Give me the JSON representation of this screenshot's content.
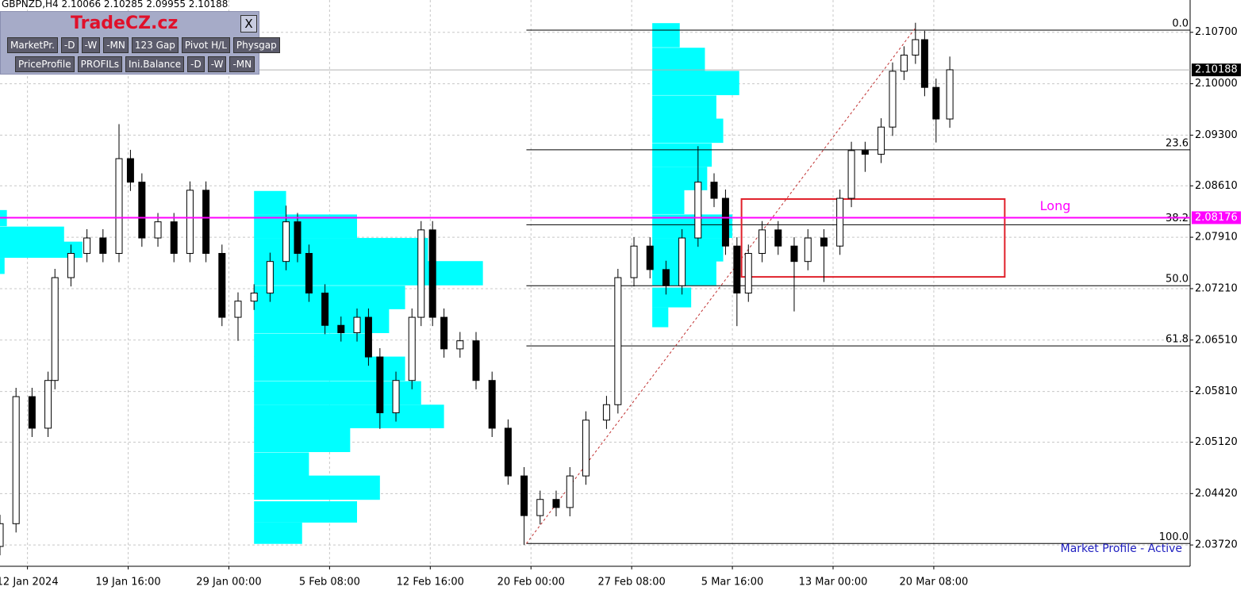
{
  "title": "GBPNZD,H4  2.10066 2.10285 2.09955 2.10188",
  "toolbar": {
    "brand": "TradeCZ.cz",
    "close": "X",
    "row1": [
      "MarketPr.",
      "-D",
      "-W",
      "-MN",
      "123 Gap",
      "Pivot H/L",
      "Physgap"
    ],
    "row2": [
      "PriceProfile",
      "PROFILs",
      "Ini.Balance",
      "-D",
      "-W",
      "-MN"
    ]
  },
  "status": "Market Profile - Active",
  "chart_data": {
    "type": "candlestick",
    "color": "#000000",
    "grid": true,
    "x": [
      0,
      7,
      14,
      21,
      24,
      31,
      38,
      45,
      52,
      57,
      62,
      69,
      76,
      83,
      90,
      97,
      104,
      111,
      118,
      125,
      130,
      135,
      142,
      149,
      156,
      161,
      166,
      173,
      180,
      184,
      189,
      194,
      201,
      208,
      215,
      222,
      229,
      236,
      243,
      249,
      256,
      265,
      270,
      277,
      284,
      291,
      298,
      305,
      312,
      317,
      322,
      327,
      333,
      340,
      347,
      353,
      360,
      367,
      372,
      378,
      385,
      390,
      395,
      400,
      404,
      409,
      415
    ],
    "open": [
      2.037,
      2.0401,
      2.0574,
      2.0531,
      2.0596,
      2.0736,
      2.0769,
      2.079,
      2.0769,
      2.0898,
      2.0866,
      2.079,
      2.0812,
      2.0769,
      2.0855,
      2.0769,
      2.0682,
      2.0704,
      2.0715,
      2.0758,
      2.0812,
      2.0769,
      2.0715,
      2.0671,
      2.0661,
      2.0682,
      2.0628,
      2.0552,
      2.0596,
      2.0682,
      2.0801,
      2.0682,
      2.0639,
      2.065,
      2.0596,
      2.0531,
      2.0466,
      2.0412,
      2.0434,
      2.0423,
      2.0466,
      2.0542,
      2.0563,
      2.0736,
      2.0779,
      2.0747,
      2.0725,
      2.079,
      2.0866,
      2.0844,
      2.0779,
      2.0715,
      2.0769,
      2.0801,
      2.0779,
      2.0758,
      2.079,
      2.0779,
      2.0844,
      2.0909,
      2.0904,
      2.0941,
      2.1017,
      2.1039,
      2.106,
      2.0995,
      2.0952
    ],
    "high": [
      2.0413,
      2.0586,
      2.0586,
      2.0608,
      2.0748,
      2.0781,
      2.0802,
      2.0802,
      2.0945,
      2.091,
      2.0878,
      2.0824,
      2.0824,
      2.0867,
      2.0867,
      2.0781,
      2.0716,
      2.0727,
      2.077,
      2.0834,
      2.0824,
      2.0781,
      2.0727,
      2.0683,
      2.0694,
      2.0694,
      2.064,
      2.0608,
      2.0694,
      2.0813,
      2.0813,
      2.0694,
      2.0662,
      2.0662,
      2.0608,
      2.0543,
      2.0478,
      2.0446,
      2.0446,
      2.0478,
      2.0554,
      2.0575,
      2.0748,
      2.0791,
      2.0791,
      2.0759,
      2.0802,
      2.0915,
      2.0878,
      2.0856,
      2.0791,
      2.0781,
      2.0813,
      2.0813,
      2.0791,
      2.0802,
      2.0802,
      2.0856,
      2.0921,
      2.0921,
      2.0953,
      2.1029,
      2.1051,
      2.1083,
      2.1072,
      2.1007,
      2.1037
    ],
    "low": [
      2.0358,
      2.0389,
      2.0519,
      2.0519,
      2.0584,
      2.0724,
      2.0757,
      2.0757,
      2.0757,
      2.0854,
      2.0778,
      2.0778,
      2.0757,
      2.0757,
      2.0757,
      2.067,
      2.065,
      2.0692,
      2.0703,
      2.0746,
      2.0757,
      2.0703,
      2.0659,
      2.0649,
      2.0649,
      2.0616,
      2.053,
      2.054,
      2.0584,
      2.067,
      2.067,
      2.0627,
      2.0627,
      2.0584,
      2.0519,
      2.0454,
      2.0372,
      2.04,
      2.0411,
      2.0411,
      2.0454,
      2.053,
      2.0551,
      2.0724,
      2.0735,
      2.0713,
      2.0713,
      2.0778,
      2.0832,
      2.0767,
      2.067,
      2.0703,
      2.0757,
      2.0767,
      2.069,
      2.0746,
      2.073,
      2.0767,
      2.0832,
      2.088,
      2.0892,
      2.0929,
      2.1005,
      2.1027,
      2.0983,
      2.092,
      2.094
    ],
    "close": [
      2.0401,
      2.0574,
      2.0531,
      2.0596,
      2.0736,
      2.0769,
      2.079,
      2.0769,
      2.0898,
      2.0866,
      2.079,
      2.0812,
      2.0769,
      2.0855,
      2.0769,
      2.0682,
      2.0704,
      2.0715,
      2.0758,
      2.0812,
      2.0769,
      2.0715,
      2.0671,
      2.0661,
      2.0682,
      2.0628,
      2.0552,
      2.0596,
      2.0682,
      2.0801,
      2.0682,
      2.0639,
      2.065,
      2.0596,
      2.0531,
      2.0466,
      2.0412,
      2.0434,
      2.0423,
      2.0466,
      2.0542,
      2.0563,
      2.0736,
      2.0779,
      2.0747,
      2.0725,
      2.079,
      2.0866,
      2.0844,
      2.0779,
      2.0715,
      2.0769,
      2.0801,
      2.0779,
      2.0758,
      2.079,
      2.0779,
      2.0844,
      2.0909,
      2.0904,
      2.0941,
      2.1017,
      2.1039,
      2.106,
      2.0995,
      2.0952,
      2.1019
    ],
    "xlim": [
      0,
      520
    ],
    "xticks": [
      {
        "value": 12,
        "label": "12 Jan 2024"
      },
      {
        "value": 56,
        "label": "19 Jan 16:00"
      },
      {
        "value": 100,
        "label": "29 Jan 00:00"
      },
      {
        "value": 144,
        "label": "5 Feb 08:00"
      },
      {
        "value": 188,
        "label": "12 Feb 16:00"
      },
      {
        "value": 232,
        "label": "20 Feb 00:00"
      },
      {
        "value": 276,
        "label": "27 Feb 08:00"
      },
      {
        "value": 320,
        "label": "5 Mar 16:00"
      },
      {
        "value": 364,
        "label": "13 Mar 00:00"
      },
      {
        "value": 408,
        "label": "20 Mar 08:00"
      }
    ],
    "ylim": [
      2.0343,
      2.1114
    ],
    "yticks": [
      {
        "value": 2.107,
        "label": "2.10700"
      },
      {
        "value": 2.1,
        "label": "2.10000"
      },
      {
        "value": 2.093,
        "label": "2.09300"
      },
      {
        "value": 2.0861,
        "label": "2.08610"
      },
      {
        "value": 2.0791,
        "label": "2.07910"
      },
      {
        "value": 2.0721,
        "label": "2.07210"
      },
      {
        "value": 2.0651,
        "label": "2.06510"
      },
      {
        "value": 2.0581,
        "label": "2.05810"
      },
      {
        "value": 2.0512,
        "label": "2.05120"
      },
      {
        "value": 2.0442,
        "label": "2.04420"
      },
      {
        "value": 2.0372,
        "label": "2.03720"
      }
    ],
    "fib": {
      "x_start": 230,
      "levels": [
        {
          "value": 2.1073,
          "label": "0.0"
        },
        {
          "value": 2.091,
          "label": "23.6"
        },
        {
          "value": 2.0808,
          "label": "38.2"
        },
        {
          "value": 2.0725,
          "label": "50.0"
        },
        {
          "value": 2.0643,
          "label": "61.8"
        },
        {
          "value": 2.0374,
          "label": "100.0"
        }
      ]
    },
    "trendline": {
      "x": [
        230,
        400
      ],
      "y": [
        2.0374,
        2.1076
      ],
      "color": "#c03030"
    },
    "long_line": {
      "value": 2.08176,
      "label": "2.08176",
      "text": "Long",
      "color": "#ff00ff"
    },
    "last_price": {
      "value": 2.10188,
      "label": "2.10188"
    },
    "zone": {
      "x": [
        324,
        439
      ],
      "y": [
        2.0737,
        2.0843
      ],
      "color": "#e0202a"
    },
    "profiles": [
      {
        "x_start": 0,
        "color": "#00ffff",
        "levels": [
          2.0817,
          2.0795,
          2.0774,
          2.0752
        ],
        "lengths": [
          3,
          28,
          36,
          2
        ]
      },
      {
        "x_start": 111,
        "color": "#00ffff",
        "levels": [
          2.0838,
          2.0806,
          2.0774,
          2.0742,
          2.0709,
          2.0677,
          2.0644,
          2.0612,
          2.0579,
          2.0547,
          2.0515,
          2.0482,
          2.045,
          2.0417,
          2.0388
        ],
        "lengths": [
          14,
          45,
          76,
          100,
          66,
          59,
          49,
          66,
          73,
          83,
          42,
          24,
          55,
          45,
          21
        ]
      },
      {
        "x_start": 285,
        "color": "#00ffff",
        "levels": [
          2.1066,
          2.1033,
          2.1001,
          2.0968,
          2.0936,
          2.0903,
          2.0871,
          2.0839,
          2.0806,
          2.0774,
          2.0742,
          2.0709,
          2.0682
        ],
        "lengths": [
          12,
          23,
          38,
          28,
          31,
          26,
          24,
          14,
          35,
          31,
          28,
          17,
          7
        ]
      }
    ]
  }
}
